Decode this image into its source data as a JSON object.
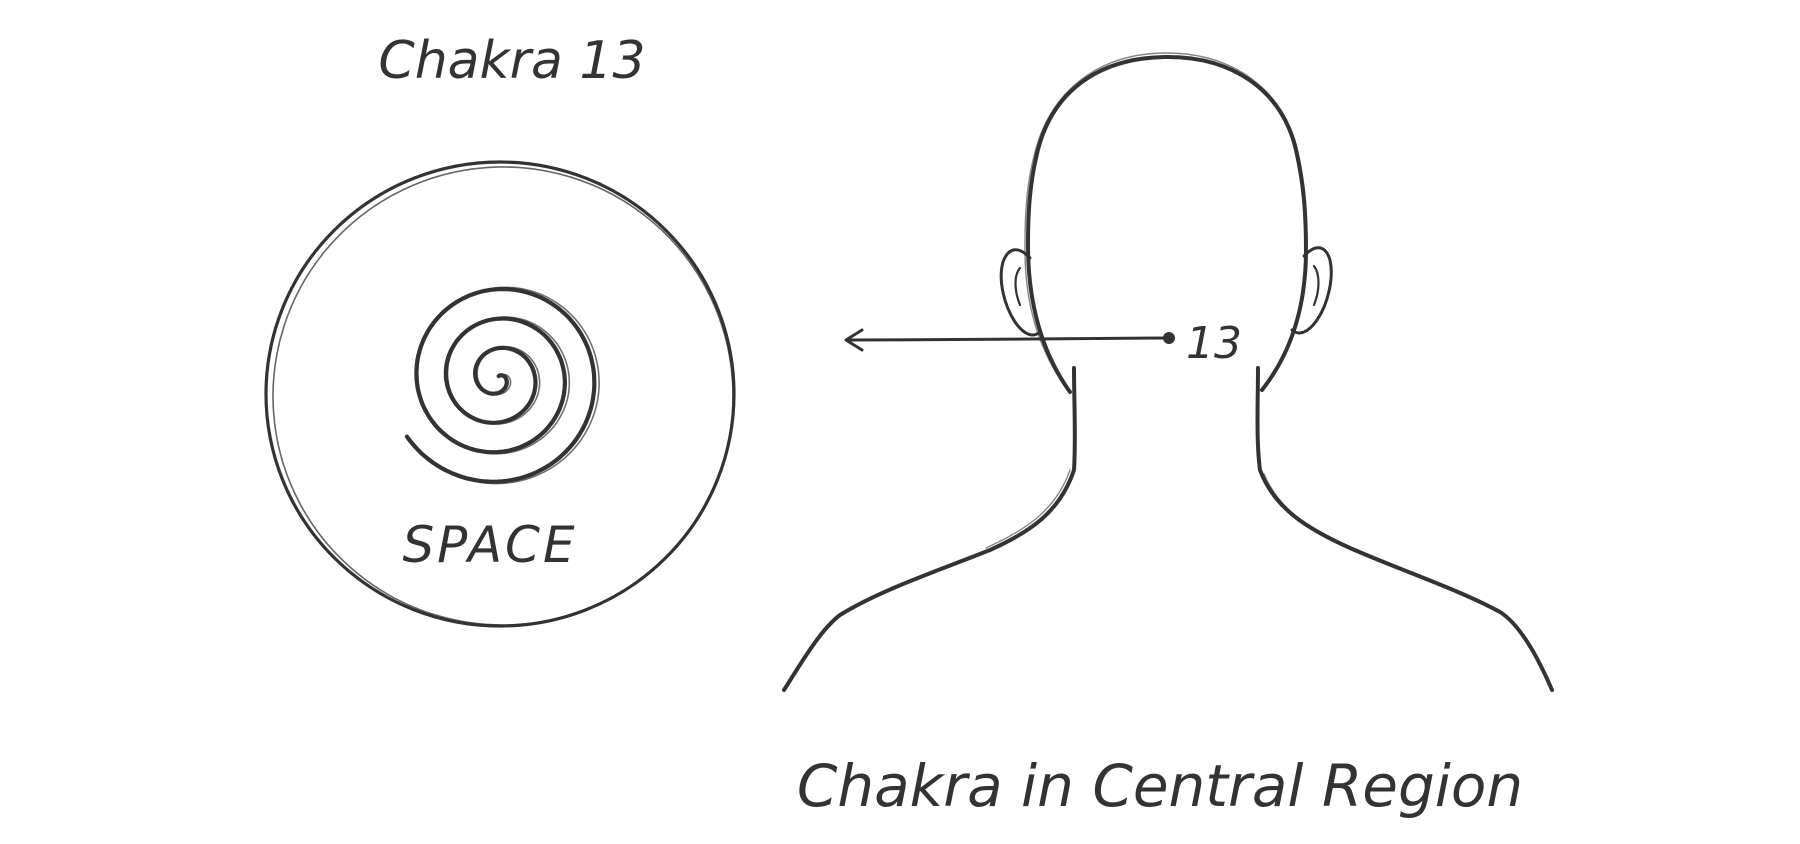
{
  "diagram": {
    "chakra_title": "Chakra 13",
    "element_label": "SPACE",
    "marker_label": "13",
    "caption": "Chakra in Central Region"
  },
  "colors": {
    "ink": "#333333",
    "background": "#ffffff"
  },
  "icons": {
    "spiral": "spiral-symbol-icon",
    "head": "head-neck-shoulders-outline",
    "arrow": "left-arrow-icon"
  }
}
